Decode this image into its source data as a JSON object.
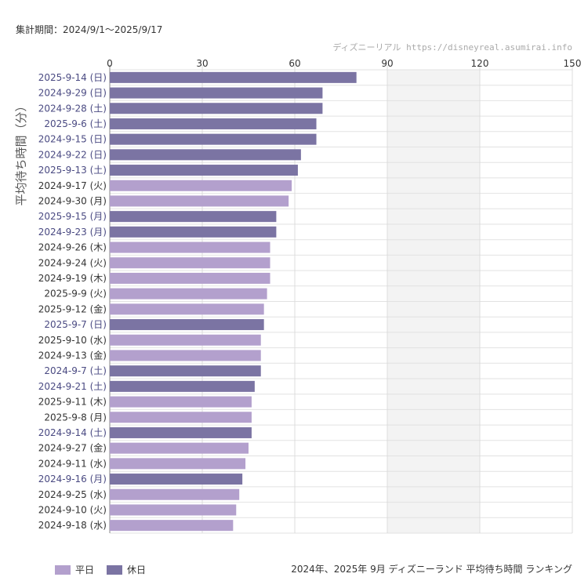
{
  "header": {
    "period": "集計期間：2024/9/1〜2025/9/17",
    "credit": "ディズニーリアル  https://disneyreal.asumirai.info"
  },
  "footer": {
    "title": "2024年、2025年 9月 ディズニーランド 平均待ち時間 ランキング"
  },
  "colors": {
    "weekday": "#b3a0cd",
    "holiday": "#7b74a3",
    "holiday_label": "#4a4a82",
    "weekday_label": "#333333"
  },
  "legend": {
    "weekday": "平日",
    "holiday": "休日"
  },
  "chart_data": {
    "type": "bar",
    "orientation": "horizontal",
    "ylabel": "平均待ち時間（分）",
    "xlim": [
      0,
      150
    ],
    "xticks": [
      0,
      30,
      60,
      90,
      120,
      150
    ],
    "grid": true,
    "legend_position": "bottom-left",
    "categories": [
      "2025-9-14 (日)",
      "2024-9-29 (日)",
      "2024-9-28 (土)",
      "2025-9-6 (土)",
      "2024-9-15 (日)",
      "2024-9-22 (日)",
      "2025-9-13 (土)",
      "2024-9-17 (火)",
      "2024-9-30 (月)",
      "2025-9-15 (月)",
      "2024-9-23 (月)",
      "2024-9-26 (木)",
      "2024-9-24 (火)",
      "2024-9-19 (木)",
      "2025-9-9 (火)",
      "2025-9-12 (金)",
      "2025-9-7 (日)",
      "2025-9-10 (水)",
      "2024-9-13 (金)",
      "2024-9-7 (土)",
      "2024-9-21 (土)",
      "2025-9-11 (木)",
      "2025-9-8 (月)",
      "2024-9-14 (土)",
      "2024-9-27 (金)",
      "2024-9-11 (水)",
      "2024-9-16 (月)",
      "2024-9-25 (水)",
      "2024-9-10 (火)",
      "2024-9-18 (水)"
    ],
    "values": [
      80,
      69,
      69,
      67,
      67,
      62,
      61,
      59,
      58,
      54,
      54,
      52,
      52,
      52,
      51,
      50,
      50,
      49,
      49,
      49,
      47,
      46,
      46,
      46,
      45,
      44,
      43,
      42,
      41,
      40
    ],
    "day_type": [
      "holiday",
      "holiday",
      "holiday",
      "holiday",
      "holiday",
      "holiday",
      "holiday",
      "weekday",
      "weekday",
      "holiday",
      "holiday",
      "weekday",
      "weekday",
      "weekday",
      "weekday",
      "weekday",
      "holiday",
      "weekday",
      "weekday",
      "holiday",
      "holiday",
      "weekday",
      "weekday",
      "holiday",
      "weekday",
      "weekday",
      "holiday",
      "weekday",
      "weekday",
      "weekday"
    ]
  }
}
